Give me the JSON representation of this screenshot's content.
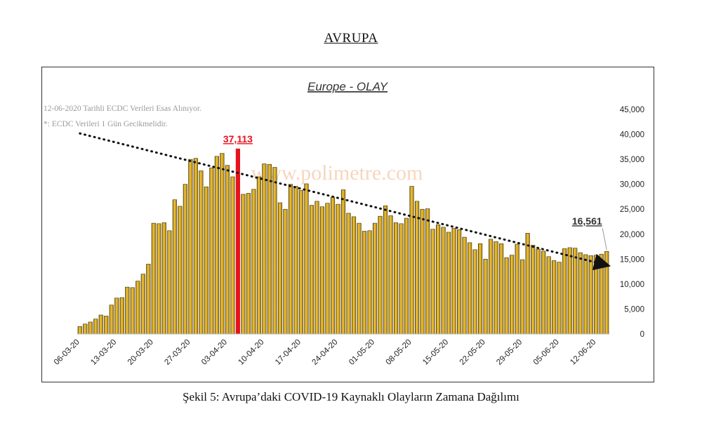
{
  "page": {
    "heading": "AVRUPA",
    "caption": "Şekil 5: Avrupa’daki COVID-19 Kaynaklı Olayların Zamana Dağılımı"
  },
  "chart_data": {
    "type": "bar",
    "title": "Europe - OLAY",
    "notes": [
      "12-06-2020 Tarihli ECDC Verileri Esas Alınıyor.",
      "*: ECDC Verileri 1 Gün Gecikmelidir."
    ],
    "watermark": "www.polimetre.com",
    "xlabel": "",
    "ylabel": "",
    "y_axis_side": "right",
    "ylim": [
      0,
      45000
    ],
    "yticks": [
      "0",
      "5,000",
      "10,000",
      "15,000",
      "20,000",
      "25,000",
      "30,000",
      "35,000",
      "40,000",
      "45,000"
    ],
    "x_tick_labels": [
      "06-03-20",
      "13-03-20",
      "20-03-20",
      "27-03-20",
      "03-04-20",
      "10-04-20",
      "17-04-20",
      "24-04-20",
      "01-05-20",
      "08-05-20",
      "15-05-20",
      "22-05-20",
      "29-05-20",
      "05-06-20",
      "12-06-20"
    ],
    "start_date": "06-03-20",
    "values": [
      1500,
      2000,
      2400,
      3000,
      3800,
      3600,
      5800,
      7200,
      7300,
      9400,
      9300,
      10600,
      12000,
      14000,
      22200,
      22100,
      22300,
      20700,
      26900,
      25600,
      30000,
      35000,
      35200,
      32700,
      29500,
      33300,
      35600,
      36200,
      33800,
      31500,
      37113,
      28000,
      28200,
      29000,
      31500,
      34100,
      34000,
      33400,
      26300,
      25000,
      30000,
      29600,
      28800,
      30100,
      25800,
      26600,
      25500,
      26200,
      27400,
      26000,
      28900,
      24200,
      23500,
      22200,
      20600,
      20700,
      22200,
      23600,
      25700,
      23700,
      22300,
      22100,
      23200,
      29600,
      26600,
      25000,
      25100,
      21000,
      21900,
      21400,
      20400,
      21200,
      20900,
      19400,
      18300,
      16900,
      18100,
      15000,
      19000,
      18500,
      18100,
      15300,
      15800,
      18000,
      14900,
      20200,
      17800,
      17000,
      16600,
      15500,
      14700,
      14400,
      17100,
      17300,
      17200,
      16300,
      15900,
      15700,
      15800,
      16000,
      16561
    ],
    "bar_color": "#d4a21a",
    "highlight": {
      "index": 30,
      "value": 37113,
      "label": "37,113",
      "color": "#e8121c"
    },
    "end_label": {
      "index": 100,
      "value": 16561,
      "label": "16,561"
    },
    "trendline": {
      "start": 40200,
      "end": 13800,
      "style": "dotted",
      "color": "#111111"
    },
    "grid": false,
    "legend": "none"
  }
}
